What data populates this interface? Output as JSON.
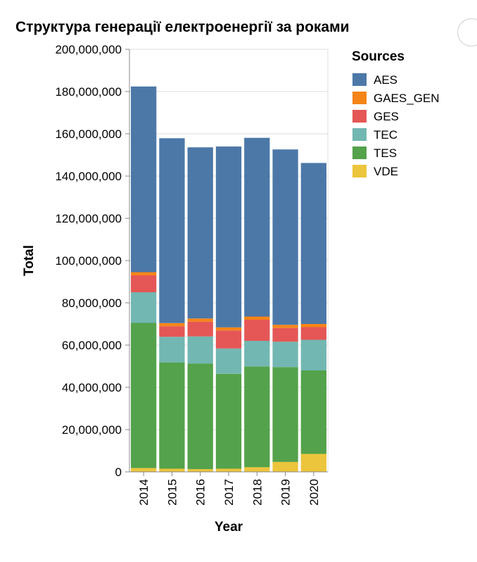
{
  "chart_data": {
    "type": "bar",
    "stacked": true,
    "title": "Структура генерації електроенергії за роками",
    "xlabel": "Year",
    "ylabel": "Total",
    "ylim": [
      0,
      200000000
    ],
    "yticks": [
      "0",
      "20,000,000",
      "40,000,000",
      "60,000,000",
      "80,000,000",
      "100,000,000",
      "120,000,000",
      "140,000,000",
      "160,000,000",
      "180,000,000",
      "200,000,000"
    ],
    "categories": [
      "2014",
      "2015",
      "2016",
      "2017",
      "2018",
      "2019",
      "2020"
    ],
    "legend": {
      "title": "Sources",
      "position": "top-right"
    },
    "grid": true,
    "series": [
      {
        "name": "VDE",
        "color": "#ECC53C",
        "values": [
          1800000,
          1500000,
          1300000,
          1500000,
          2200000,
          4700000,
          8500000
        ]
      },
      {
        "name": "TES",
        "color": "#54A24B",
        "values": [
          68700000,
          50300000,
          50000000,
          44900000,
          47700000,
          44900000,
          39500000
        ]
      },
      {
        "name": "TEC",
        "color": "#72B7B2",
        "values": [
          14500000,
          12100000,
          12800000,
          12000000,
          12100000,
          12000000,
          14500000
        ]
      },
      {
        "name": "GES",
        "color": "#E45756",
        "values": [
          8000000,
          5000000,
          7000000,
          8500000,
          10000000,
          6500000,
          6000000
        ]
      },
      {
        "name": "GAES_GEN",
        "color": "#F58518",
        "values": [
          1500000,
          1500000,
          1500000,
          1500000,
          1500000,
          1500000,
          1500000
        ]
      },
      {
        "name": "AES",
        "color": "#4C78A8",
        "values": [
          87900000,
          87500000,
          81000000,
          85600000,
          84600000,
          83000000,
          76200000
        ]
      }
    ],
    "legend_order": [
      "AES",
      "GAES_GEN",
      "GES",
      "TEC",
      "TES",
      "VDE"
    ]
  }
}
